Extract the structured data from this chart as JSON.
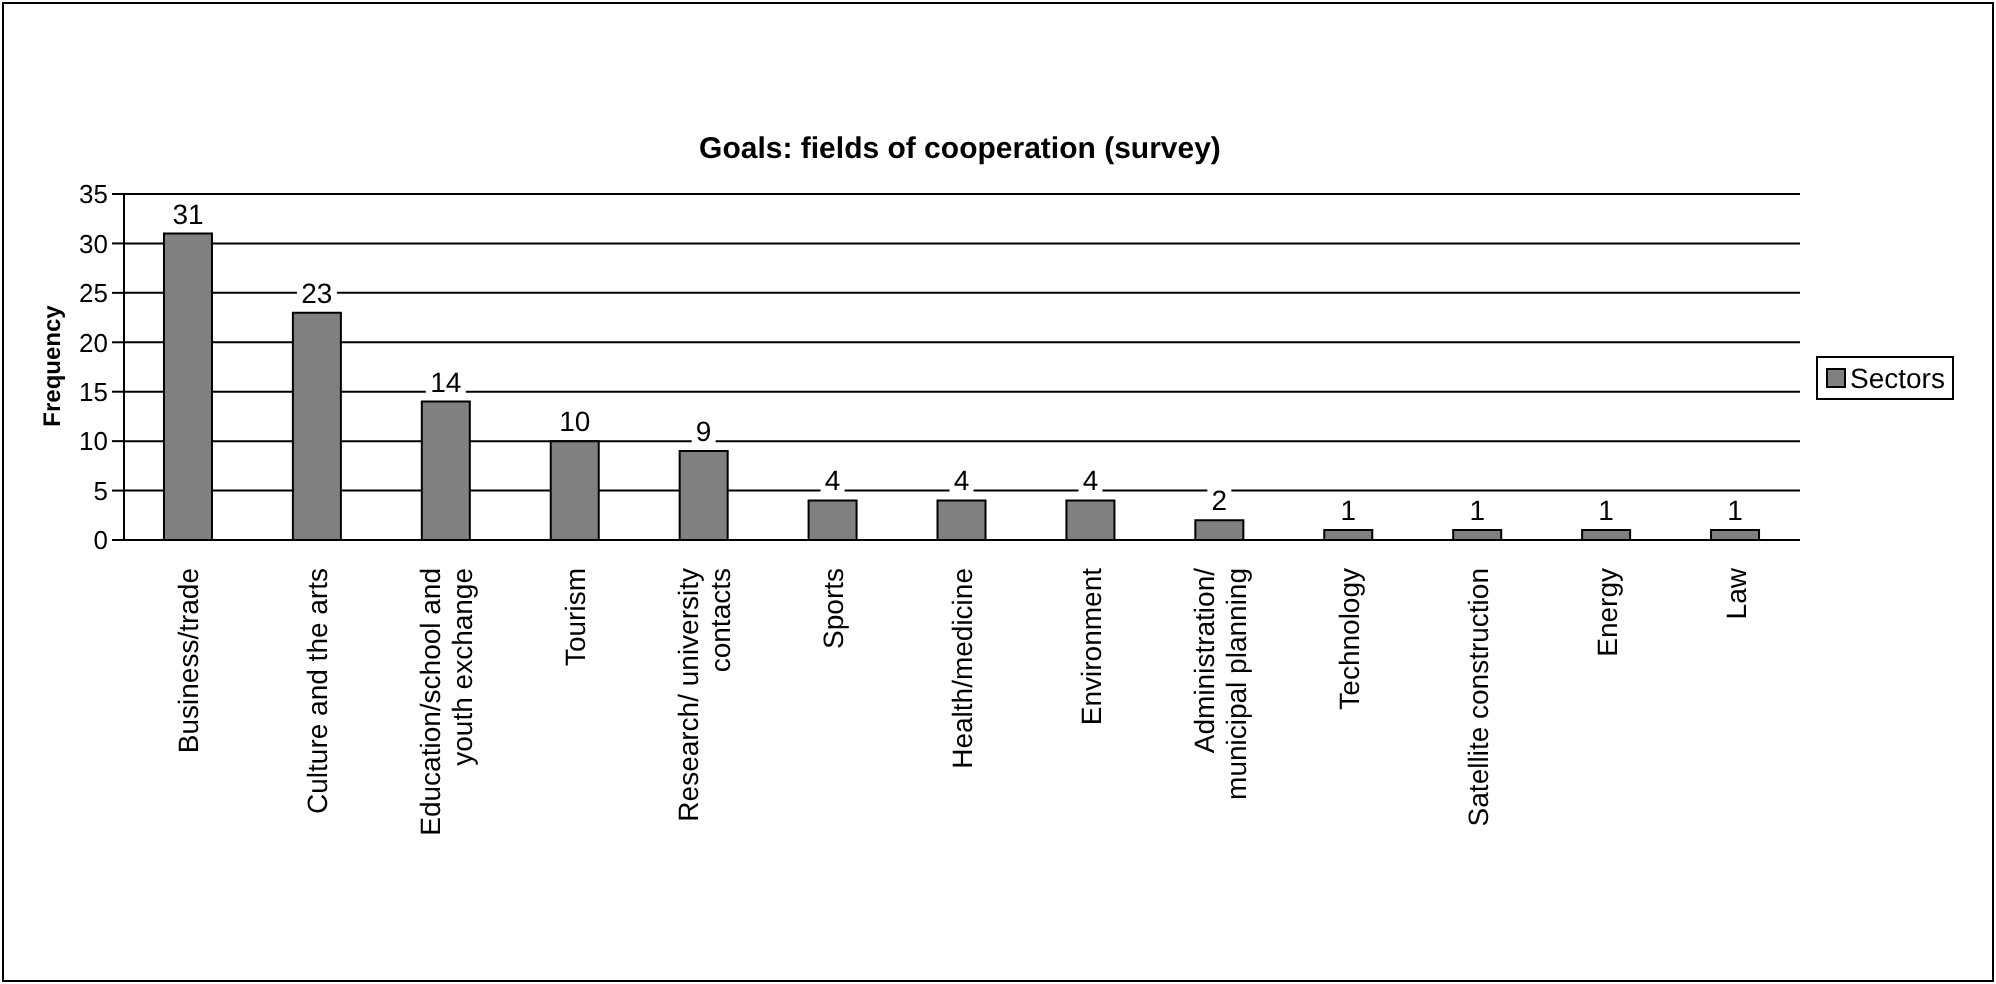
{
  "chart_data": {
    "type": "bar",
    "title": "Goals: fields of cooperation (survey)",
    "ylabel": "Frequency",
    "categories": [
      "Business/trade",
      "Culture and the arts",
      "Education/school and youth exchange",
      "Tourism",
      "Research/ university contacts",
      "Sports",
      "Health/medicine",
      "Environment",
      "Administration/ municipal planning",
      "Technology",
      "Satellite construction",
      "Energy",
      "Law"
    ],
    "series": [
      {
        "name": "Sectors",
        "color": "#808080",
        "values": [
          31,
          23,
          14,
          10,
          9,
          4,
          4,
          4,
          2,
          1,
          1,
          1,
          1
        ]
      }
    ],
    "ylim": [
      0,
      35
    ],
    "yticks": [
      0,
      5,
      10,
      15,
      20,
      25,
      30,
      35
    ],
    "grid": "y",
    "legend": "right",
    "data_labels": true
  }
}
